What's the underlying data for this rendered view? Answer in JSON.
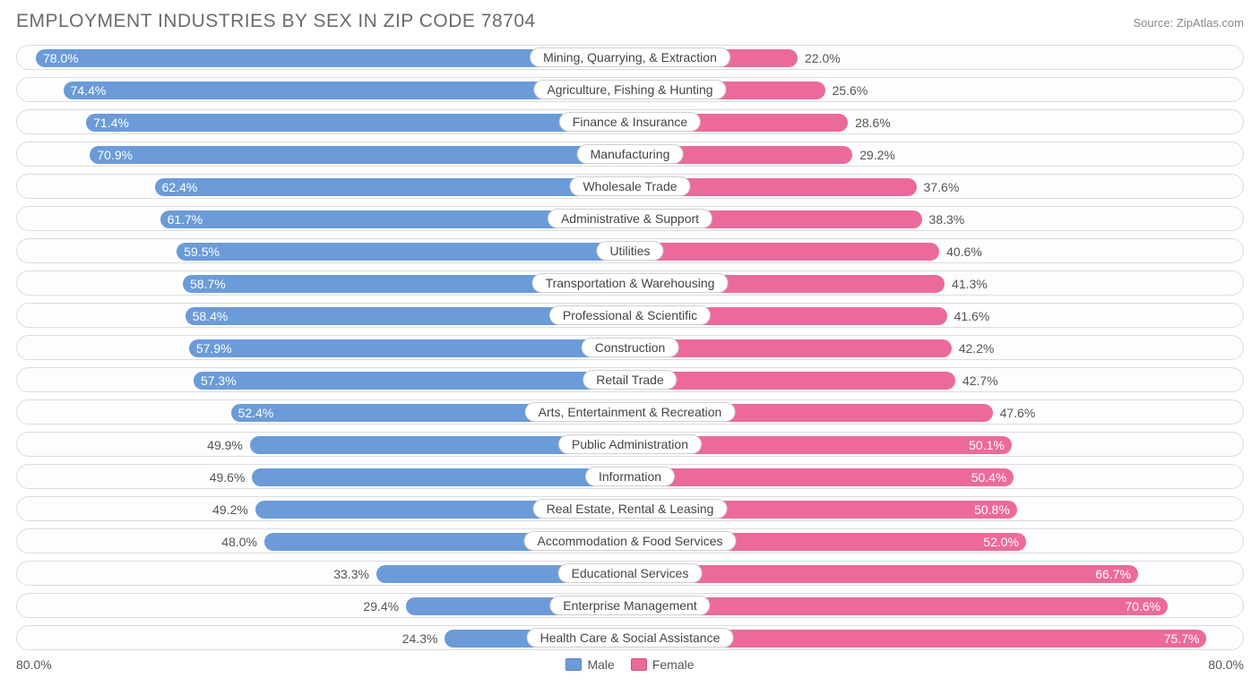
{
  "header": {
    "title": "EMPLOYMENT INDUSTRIES BY SEX IN ZIP CODE 78704",
    "source_prefix": "Source: ",
    "source_name": "ZipAtlas.com"
  },
  "chart": {
    "type": "diverging-bar",
    "axis_max_pct": 80.0,
    "colors": {
      "male": "#6b9bd8",
      "female": "#ec6a9b",
      "row_border": "#dcdcdc",
      "background": "#ffffff",
      "text": "#555555"
    },
    "inside_label_threshold_pct": 50.0,
    "rows": [
      {
        "label": "Mining, Quarrying, & Extraction",
        "male": 78.0,
        "female": 22.0
      },
      {
        "label": "Agriculture, Fishing & Hunting",
        "male": 74.4,
        "female": 25.6
      },
      {
        "label": "Finance & Insurance",
        "male": 71.4,
        "female": 28.6
      },
      {
        "label": "Manufacturing",
        "male": 70.9,
        "female": 29.2
      },
      {
        "label": "Wholesale Trade",
        "male": 62.4,
        "female": 37.6
      },
      {
        "label": "Administrative & Support",
        "male": 61.7,
        "female": 38.3
      },
      {
        "label": "Utilities",
        "male": 59.5,
        "female": 40.6
      },
      {
        "label": "Transportation & Warehousing",
        "male": 58.7,
        "female": 41.3
      },
      {
        "label": "Professional & Scientific",
        "male": 58.4,
        "female": 41.6
      },
      {
        "label": "Construction",
        "male": 57.9,
        "female": 42.2
      },
      {
        "label": "Retail Trade",
        "male": 57.3,
        "female": 42.7
      },
      {
        "label": "Arts, Entertainment & Recreation",
        "male": 52.4,
        "female": 47.6
      },
      {
        "label": "Public Administration",
        "male": 49.9,
        "female": 50.1
      },
      {
        "label": "Information",
        "male": 49.6,
        "female": 50.4
      },
      {
        "label": "Real Estate, Rental & Leasing",
        "male": 49.2,
        "female": 50.8
      },
      {
        "label": "Accommodation & Food Services",
        "male": 48.0,
        "female": 52.0
      },
      {
        "label": "Educational Services",
        "male": 33.3,
        "female": 66.7
      },
      {
        "label": "Enterprise Management",
        "male": 29.4,
        "female": 70.6
      },
      {
        "label": "Health Care & Social Assistance",
        "male": 24.3,
        "female": 75.7
      }
    ],
    "legend": {
      "male": "Male",
      "female": "Female"
    },
    "axis_left_label": "80.0%",
    "axis_right_label": "80.0%"
  }
}
